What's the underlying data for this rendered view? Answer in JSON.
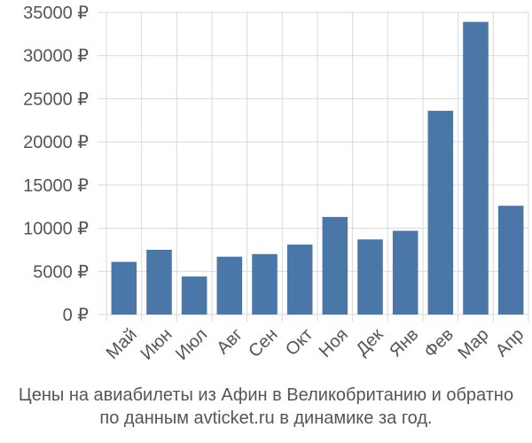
{
  "chart_data": {
    "type": "bar",
    "categories": [
      "Май",
      "Июн",
      "Июл",
      "Авг",
      "Сен",
      "Окт",
      "Ноя",
      "Дек",
      "Янв",
      "Фев",
      "Мар",
      "Апр"
    ],
    "values": [
      6100,
      7500,
      4400,
      6700,
      7000,
      8100,
      11300,
      8700,
      9700,
      23600,
      33900,
      12600
    ],
    "ylim": [
      0,
      35000
    ],
    "yticks": [
      0,
      5000,
      10000,
      15000,
      20000,
      25000,
      30000,
      35000
    ],
    "ytick_labels": [
      "0 ₽",
      "5000 ₽",
      "10000 ₽",
      "15000 ₽",
      "20000 ₽",
      "25000 ₽",
      "30000 ₽",
      "35000 ₽"
    ],
    "grid": true,
    "bar_color": "#4a76a8"
  },
  "caption": {
    "line1": "Цены на авиабилеты из Афин в Великобританию и обратно",
    "line2": "по данным avticket.ru в динамике за год."
  }
}
